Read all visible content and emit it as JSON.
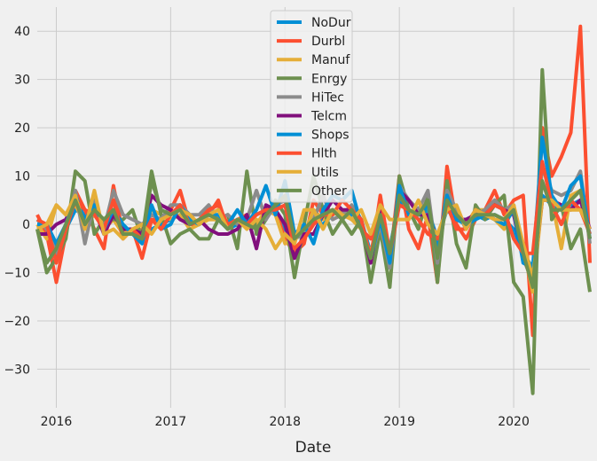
{
  "chart_data": {
    "type": "line",
    "title": "",
    "xlabel": "Date",
    "ylabel": "",
    "ylim": [
      -38,
      45
    ],
    "xlim": [
      "2015-11",
      "2020-09"
    ],
    "grid": true,
    "legend": "top-center",
    "x_ticks": [
      {
        "date": "2016-01",
        "label": "2016"
      },
      {
        "date": "2017-01",
        "label": "2017"
      },
      {
        "date": "2018-01",
        "label": "2018"
      },
      {
        "date": "2019-01",
        "label": "2019"
      },
      {
        "date": "2020-01",
        "label": "2020"
      }
    ],
    "y_ticks": [
      -30,
      -20,
      -10,
      0,
      10,
      20,
      30,
      40
    ],
    "x": [
      "2015-11",
      "2015-12",
      "2016-01",
      "2016-02",
      "2016-03",
      "2016-04",
      "2016-05",
      "2016-06",
      "2016-07",
      "2016-08",
      "2016-09",
      "2016-10",
      "2016-11",
      "2016-12",
      "2017-01",
      "2017-02",
      "2017-03",
      "2017-04",
      "2017-05",
      "2017-06",
      "2017-07",
      "2017-08",
      "2017-09",
      "2017-10",
      "2017-11",
      "2017-12",
      "2018-01",
      "2018-02",
      "2018-03",
      "2018-04",
      "2018-05",
      "2018-06",
      "2018-07",
      "2018-08",
      "2018-09",
      "2018-10",
      "2018-11",
      "2018-12",
      "2019-01",
      "2019-02",
      "2019-03",
      "2019-04",
      "2019-05",
      "2019-06",
      "2019-07",
      "2019-08",
      "2019-09",
      "2019-10",
      "2019-11",
      "2019-12",
      "2020-01",
      "2020-02",
      "2020-03",
      "2020-04",
      "2020-05",
      "2020-06",
      "2020-07",
      "2020-08",
      "2020-09"
    ],
    "series": [
      {
        "name": "NoDur",
        "color": "#008fd5",
        "values": [
          -1,
          -2,
          -5,
          -1,
          3,
          2,
          3,
          -1,
          2,
          -1,
          -2,
          -3,
          -1,
          0,
          1,
          2,
          1,
          0,
          2,
          1,
          -1,
          0,
          1,
          2,
          3,
          3,
          -1,
          -3,
          -1,
          1,
          0,
          2,
          3,
          2,
          1,
          -6,
          2,
          -5,
          5,
          2,
          2,
          3,
          -3,
          3,
          1,
          1,
          2,
          1,
          2,
          1,
          -1,
          -6,
          -9,
          6,
          4,
          3,
          4,
          5,
          -2
        ]
      },
      {
        "name": "Durbl",
        "color": "#fc4f30",
        "values": [
          2,
          -2,
          -12,
          -2,
          7,
          3,
          -1,
          -5,
          8,
          -2,
          -1,
          -7,
          1,
          1,
          3,
          7,
          0,
          0,
          2,
          5,
          -1,
          1,
          2,
          -1,
          3,
          3,
          -3,
          -6,
          -4,
          5,
          2,
          3,
          2,
          3,
          -1,
          -3,
          4,
          -8,
          10,
          -1,
          -5,
          2,
          -12,
          12,
          0,
          -3,
          1,
          3,
          7,
          2,
          5,
          6,
          -23,
          20,
          10,
          14,
          19,
          41,
          -8
        ]
      },
      {
        "name": "Manuf",
        "color": "#e5ae38",
        "values": [
          0,
          -3,
          4,
          2,
          4,
          0,
          2,
          -1,
          1,
          -2,
          -1,
          -1,
          3,
          2,
          1,
          2,
          -1,
          0,
          1,
          1,
          0,
          1,
          1,
          0,
          3,
          2,
          -4,
          -3,
          -2,
          3,
          1,
          2,
          3,
          1,
          -1,
          -6,
          3,
          -6,
          6,
          3,
          2,
          4,
          -7,
          5,
          2,
          0,
          3,
          3,
          1,
          -1,
          4,
          -5,
          -14,
          5,
          5,
          -5,
          6,
          7,
          -3
        ]
      },
      {
        "name": "Enrgy",
        "color": "#6d904f",
        "values": [
          -1,
          -10,
          -7,
          -3,
          11,
          9,
          -2,
          1,
          1,
          1,
          3,
          -3,
          11,
          2,
          -4,
          -2,
          -1,
          -3,
          -3,
          1,
          2,
          -5,
          11,
          -2,
          1,
          5,
          2,
          -11,
          0,
          10,
          3,
          -2,
          1,
          -2,
          1,
          -12,
          -1,
          -13,
          10,
          3,
          -1,
          6,
          -12,
          9,
          -4,
          -9,
          4,
          1,
          4,
          6,
          -12,
          -15,
          -35,
          32,
          1,
          4,
          -5,
          -1,
          -14
        ]
      },
      {
        "name": "HiTec",
        "color": "#8b8b8b",
        "values": [
          1,
          -1,
          -6,
          -1,
          7,
          -4,
          5,
          -1,
          7,
          2,
          1,
          0,
          2,
          1,
          4,
          4,
          2,
          2,
          4,
          1,
          2,
          0,
          1,
          7,
          1,
          4,
          5,
          -3,
          -2,
          1,
          6,
          1,
          2,
          4,
          1,
          -7,
          0,
          -9,
          8,
          5,
          3,
          7,
          -8,
          7,
          3,
          -1,
          2,
          3,
          5,
          3,
          4,
          -7,
          -12,
          12,
          7,
          6,
          7,
          11,
          -4
        ]
      },
      {
        "name": "Telcm",
        "color": "#810f7c",
        "values": [
          -2,
          -2,
          0,
          1,
          5,
          0,
          3,
          -2,
          2,
          -1,
          -1,
          -2,
          6,
          4,
          3,
          1,
          0,
          1,
          -1,
          -2,
          -2,
          -1,
          2,
          -5,
          4,
          3,
          0,
          -7,
          -2,
          -2,
          2,
          5,
          3,
          3,
          0,
          -8,
          3,
          -7,
          7,
          5,
          2,
          2,
          -3,
          4,
          1,
          1,
          2,
          2,
          4,
          3,
          2,
          -7,
          -11,
          5,
          5,
          4,
          3,
          5,
          -1
        ]
      },
      {
        "name": "Shops",
        "color": "#008fd5",
        "values": [
          0,
          0,
          -4,
          0,
          6,
          1,
          4,
          -1,
          3,
          0,
          -2,
          -4,
          4,
          -1,
          0,
          4,
          1,
          0,
          2,
          2,
          0,
          3,
          0,
          3,
          8,
          2,
          9,
          -2,
          0,
          -4,
          3,
          6,
          5,
          7,
          0,
          -7,
          1,
          -8,
          8,
          2,
          2,
          4,
          -5,
          6,
          1,
          0,
          1,
          2,
          1,
          0,
          3,
          -8,
          -9,
          18,
          6,
          3,
          8,
          10,
          -3
        ]
      },
      {
        "name": "Hlth",
        "color": "#fc4f30",
        "values": [
          1,
          0,
          -8,
          -1,
          5,
          3,
          2,
          -1,
          5,
          -3,
          -1,
          -3,
          1,
          -1,
          2,
          4,
          0,
          1,
          3,
          4,
          0,
          1,
          0,
          2,
          3,
          3,
          4,
          -5,
          -3,
          0,
          2,
          2,
          5,
          3,
          1,
          -7,
          6,
          -6,
          4,
          3,
          1,
          -2,
          -3,
          4,
          -1,
          -1,
          3,
          2,
          4,
          3,
          -3,
          -6,
          -6,
          13,
          4,
          0,
          5,
          3,
          -2
        ]
      },
      {
        "name": "Utils",
        "color": "#e5ae38",
        "values": [
          -1,
          0,
          4,
          2,
          6,
          -1,
          7,
          -2,
          -1,
          -3,
          -1,
          0,
          -2,
          1,
          2,
          3,
          2,
          0,
          2,
          3,
          -1,
          1,
          -1,
          1,
          -1,
          -5,
          -2,
          -4,
          3,
          3,
          -1,
          3,
          2,
          1,
          3,
          -2,
          4,
          1,
          1,
          1,
          5,
          0,
          -2,
          3,
          4,
          -1,
          3,
          2,
          1,
          1,
          4,
          -4,
          -11,
          5,
          5,
          3,
          3,
          3,
          -1
        ]
      },
      {
        "name": "Other",
        "color": "#6d904f",
        "values": [
          -1,
          -8,
          -5,
          0,
          5,
          0,
          3,
          1,
          3,
          -2,
          -2,
          -3,
          9,
          3,
          2,
          3,
          0,
          1,
          2,
          1,
          -1,
          1,
          0,
          -1,
          2,
          4,
          6,
          -3,
          -1,
          1,
          2,
          3,
          1,
          3,
          -1,
          -7,
          2,
          -6,
          6,
          3,
          2,
          5,
          -7,
          5,
          2,
          0,
          2,
          2,
          2,
          1,
          3,
          -6,
          -13,
          9,
          3,
          3,
          5,
          7,
          -3
        ]
      }
    ]
  }
}
